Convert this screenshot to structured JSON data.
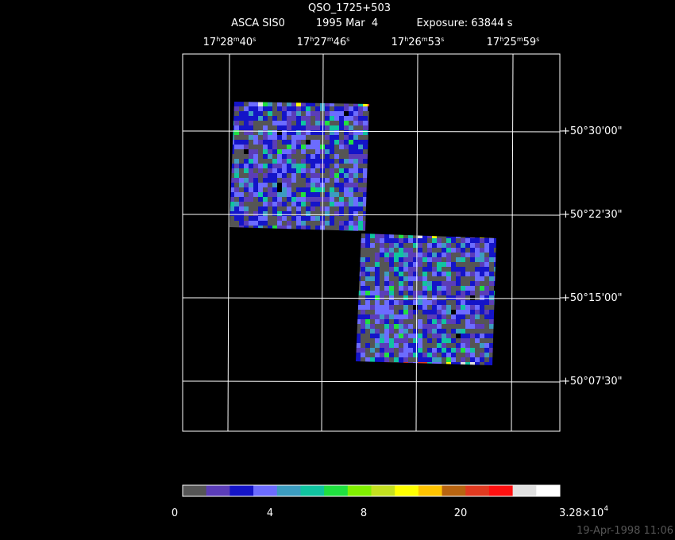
{
  "title": "QSO_1725+503",
  "subtitle": [
    "ASCA SIS0",
    "1995 Mar  4",
    "Exposure: 63844 s"
  ],
  "ra_units": [
    "h",
    "m",
    "s"
  ],
  "ra_labels": [
    {
      "hours": "17",
      "minutes": "28",
      "seconds": "40"
    },
    {
      "hours": "17",
      "minutes": "27",
      "seconds": "46"
    },
    {
      "hours": "17",
      "minutes": "26",
      "seconds": "53"
    },
    {
      "hours": "17",
      "minutes": "25",
      "seconds": "59"
    }
  ],
  "dec_labels": [
    "+50°30'00\"",
    "+50°22'30\"",
    "+50°15'00\"",
    "+50°07'30\""
  ],
  "colorbar": {
    "colors": [
      "#555555",
      "#5b3db8",
      "#1414c8",
      "#6c6cff",
      "#3c9cc0",
      "#10c4a0",
      "#20e040",
      "#80f000",
      "#c4e020",
      "#ffff00",
      "#ffc400",
      "#b86410",
      "#e03a20",
      "#ff1010",
      "#e0e0e0",
      "#ffffff"
    ],
    "labels": [
      "0",
      "4",
      "8",
      "20",
      {
        "mantissa": "3.28×10",
        "exponent": "4"
      }
    ]
  },
  "timestamp": "19-Apr-1998 11:06"
}
